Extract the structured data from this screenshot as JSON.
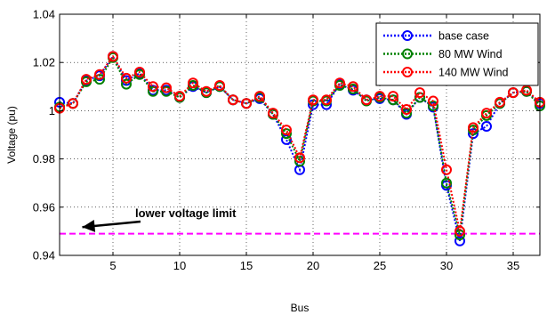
{
  "chart_data": {
    "type": "line",
    "title": "",
    "xlabel": "Bus",
    "ylabel": "Voltage (pu)",
    "xlim": [
      1,
      37
    ],
    "ylim": [
      0.94,
      1.04
    ],
    "xticks": [
      5,
      10,
      15,
      20,
      25,
      30,
      35
    ],
    "xtick_labels": [
      "5",
      "10",
      "15",
      "20",
      "25",
      "30",
      "35"
    ],
    "yticks": [
      0.94,
      0.96,
      0.98,
      1.0,
      1.02,
      1.04
    ],
    "ytick_labels": [
      "0.94",
      "0.96",
      "0.98",
      "1",
      "1.02",
      "1.04"
    ],
    "grid": true,
    "legend_position": "top-right",
    "x": [
      1,
      2,
      3,
      4,
      5,
      6,
      7,
      8,
      9,
      10,
      11,
      12,
      13,
      14,
      15,
      16,
      17,
      18,
      19,
      20,
      21,
      22,
      23,
      24,
      25,
      26,
      27,
      28,
      29,
      30,
      31,
      32,
      33,
      34,
      35,
      36,
      37
    ],
    "series": [
      {
        "name": "base case",
        "color": "#0000ff",
        "values": [
          1.0035,
          1.003,
          1.0125,
          1.0145,
          1.0225,
          1.0125,
          1.0155,
          1.0085,
          1.0085,
          1.0055,
          1.01,
          1.0075,
          1.01,
          1.0045,
          1.003,
          1.005,
          0.9985,
          0.988,
          0.9755,
          1.0025,
          1.0025,
          1.011,
          1.0085,
          1.0045,
          1.005,
          1.0045,
          0.9985,
          1.0055,
          1.0015,
          0.969,
          0.946,
          0.9905,
          0.9935,
          1.003,
          1.0075,
          1.008,
          1.003
        ]
      },
      {
        "name": "80 MW Wind",
        "color": "#008000",
        "values": [
          1.0015,
          1.003,
          1.012,
          1.013,
          1.022,
          1.011,
          1.015,
          1.008,
          1.008,
          1.0055,
          1.0105,
          1.0075,
          1.01,
          1.0045,
          1.003,
          1.0055,
          0.9985,
          0.9905,
          0.979,
          1.004,
          1.004,
          1.0105,
          1.009,
          1.004,
          1.0055,
          1.0045,
          0.999,
          1.0055,
          1.002,
          0.97,
          0.9485,
          0.992,
          0.998,
          1.003,
          1.0075,
          1.008,
          1.002
        ]
      },
      {
        "name": "140 MW Wind",
        "color": "#ff0000",
        "values": [
          1.001,
          1.003,
          1.013,
          1.015,
          1.0225,
          1.0135,
          1.016,
          1.01,
          1.0095,
          1.006,
          1.0115,
          1.008,
          1.0105,
          1.0045,
          1.003,
          1.006,
          0.999,
          0.992,
          0.9805,
          1.0045,
          1.0045,
          1.0115,
          1.01,
          1.0045,
          1.006,
          1.006,
          1.0005,
          1.0075,
          1.004,
          0.9755,
          0.95,
          0.993,
          0.999,
          1.0035,
          1.0075,
          1.0085,
          1.0035
        ]
      }
    ],
    "limit_line": {
      "value": 0.949,
      "color": "#ff00ff"
    },
    "annotation": {
      "text": "lower voltage limit",
      "x": 15,
      "y": 0.971,
      "arrow_to": [
        2.7,
        0.9495
      ]
    }
  }
}
